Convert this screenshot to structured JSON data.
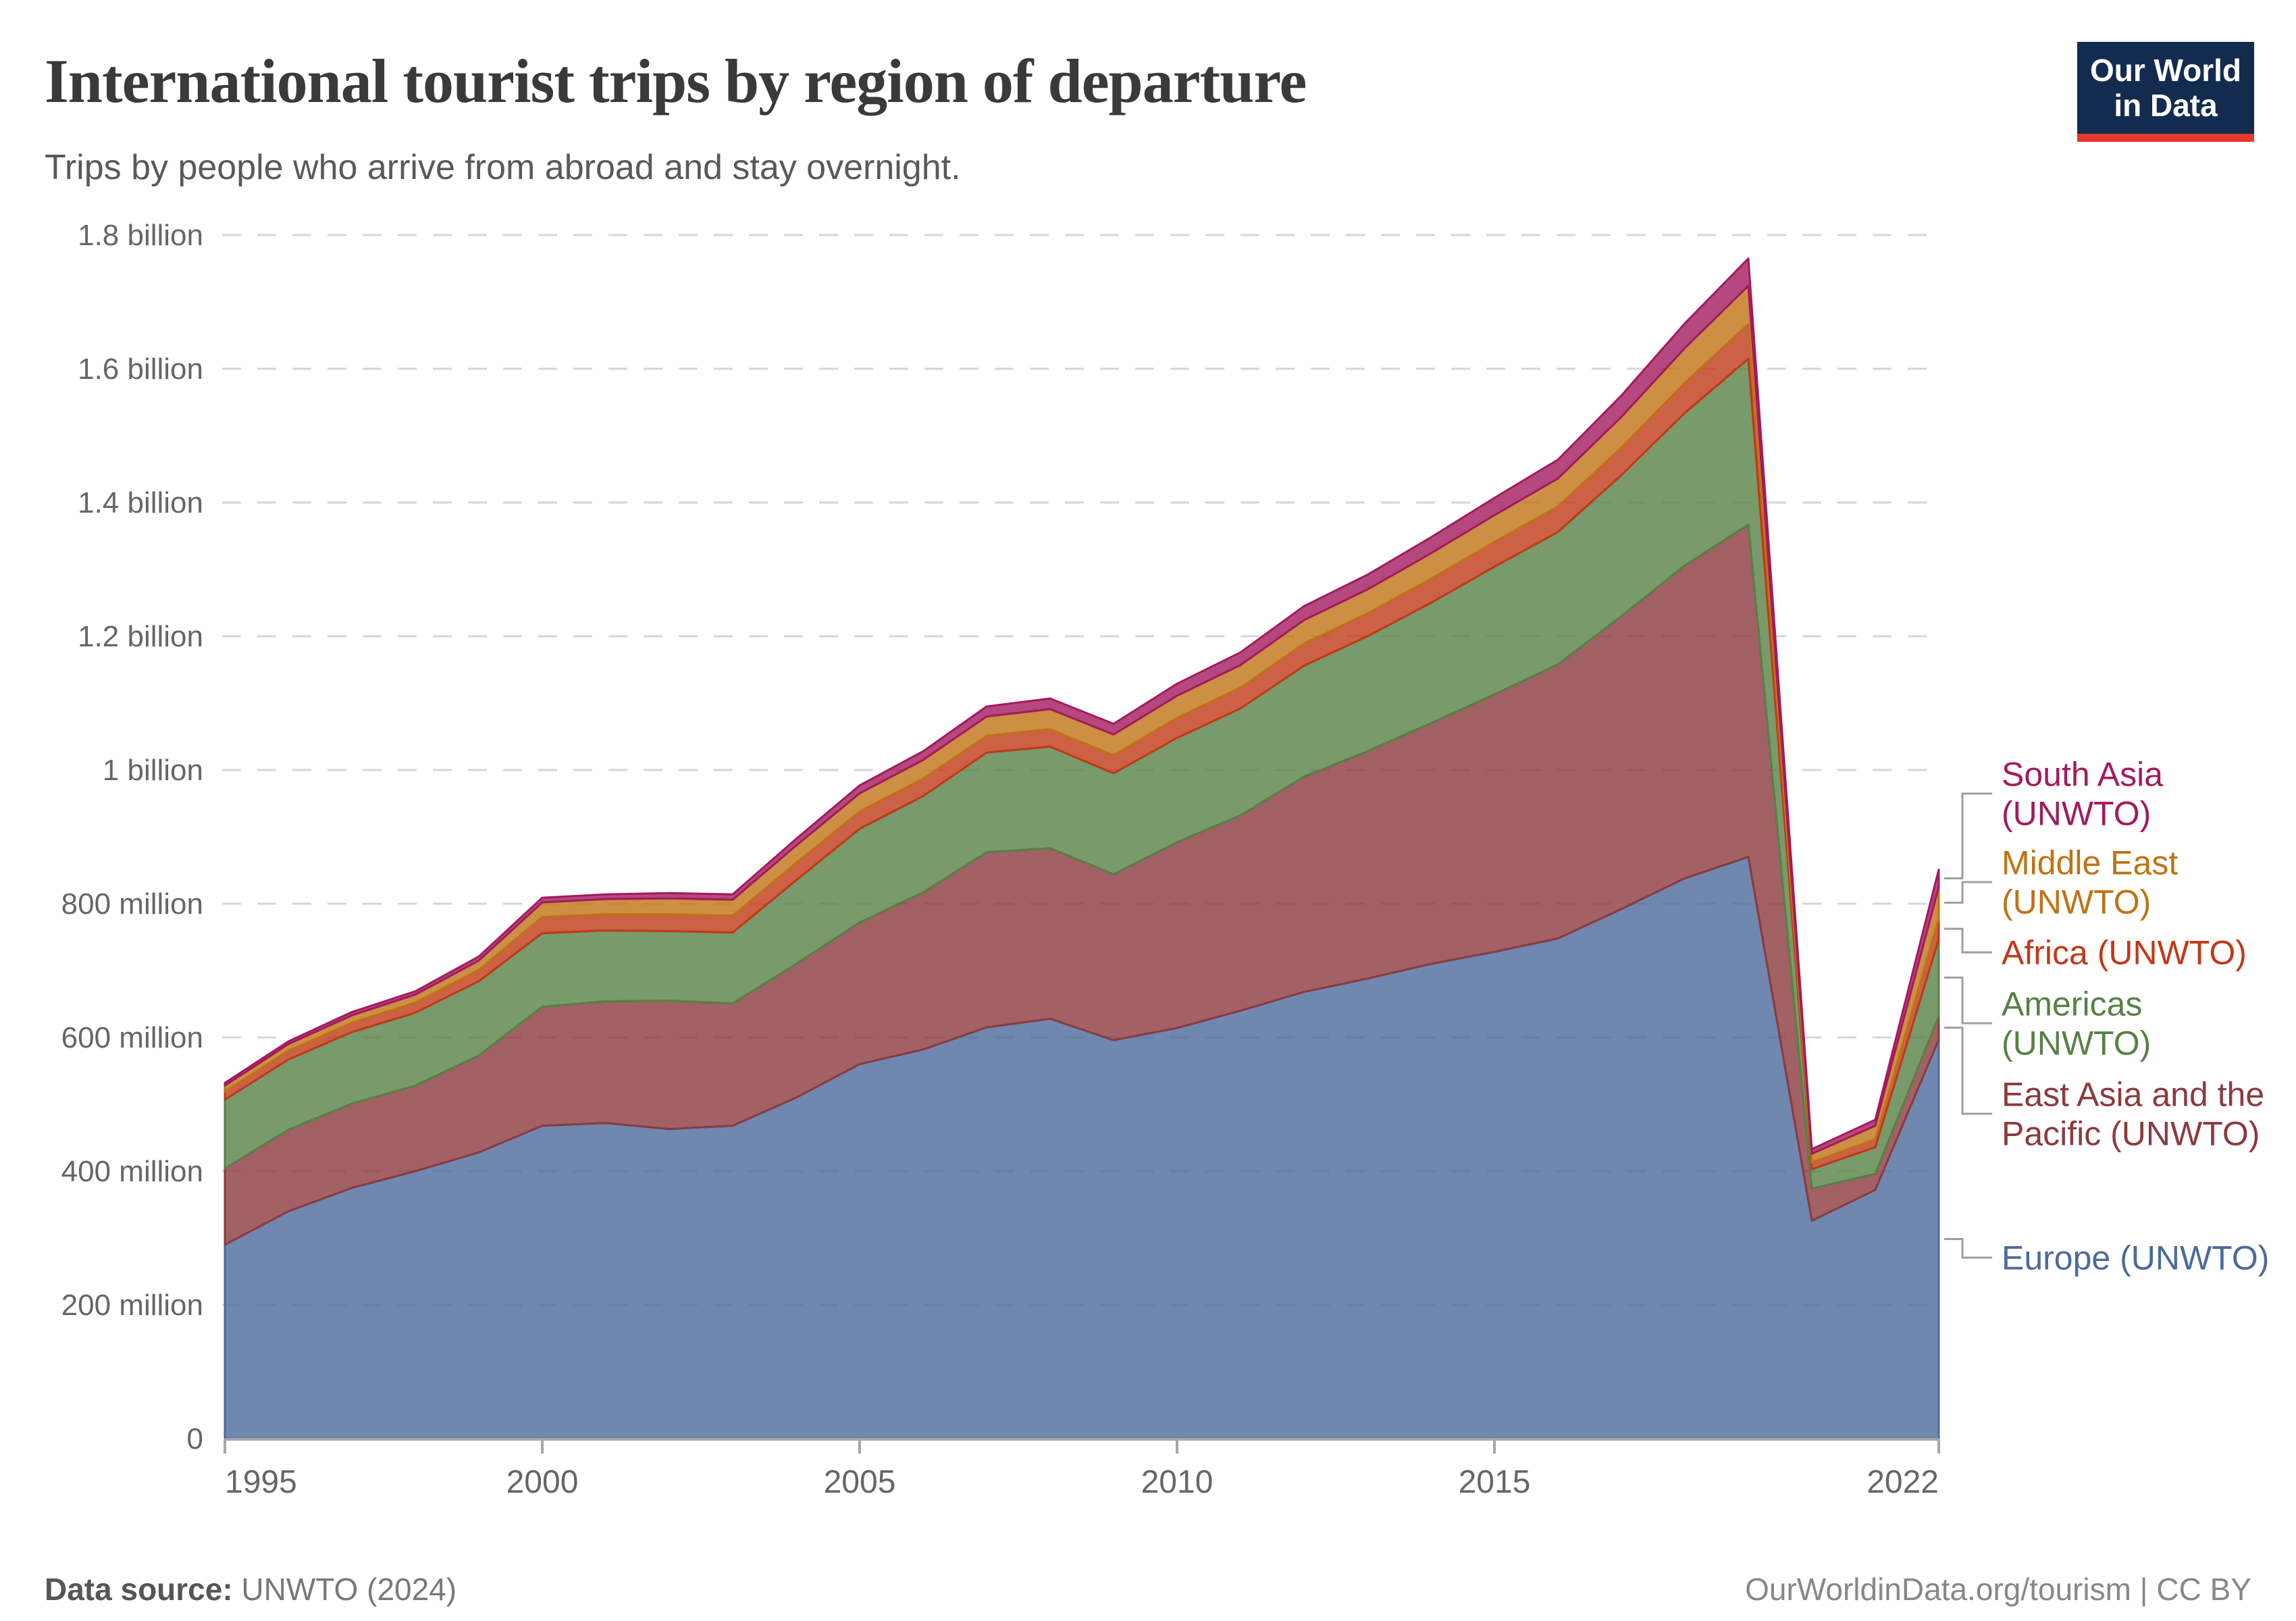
{
  "header": {
    "title": "International tourist trips by region of departure",
    "subtitle": "Trips by people who arrive from abroad and stay overnight.",
    "logo_line1": "Our World",
    "logo_line2": "in Data"
  },
  "footer": {
    "source_label": "Data source:",
    "source_value": " UNWTO (2024)",
    "credit": "OurWorldinData.org/tourism | CC BY"
  },
  "colors": {
    "background": "#ffffff",
    "grid": "#d6d6d6",
    "axis": "#a5a5a5",
    "tick_label": "#666666",
    "leader_line": "#9e9e9e",
    "logo_bg": "#132B4F",
    "logo_red": "#E23A2C"
  },
  "chart_data": {
    "type": "area",
    "stacked": true,
    "title": "International tourist trips by region of departure",
    "xlabel": "",
    "ylabel": "",
    "unit": "trips per year",
    "grid": "dashed-horizontal",
    "legend_position": "right",
    "xlim": [
      1995,
      2022
    ],
    "ylim": [
      0,
      1800
    ],
    "ylim_unit": "millions",
    "x": [
      1995,
      1996,
      1997,
      1998,
      1999,
      2000,
      2001,
      2002,
      2003,
      2004,
      2005,
      2006,
      2007,
      2008,
      2009,
      2010,
      2011,
      2012,
      2013,
      2014,
      2015,
      2016,
      2017,
      2018,
      2019,
      2020,
      2021,
      2022
    ],
    "x_ticks": [
      1995,
      2000,
      2005,
      2010,
      2015,
      2022
    ],
    "y_ticks": [
      {
        "value": 0,
        "label": "0"
      },
      {
        "value": 200,
        "label": "200 million"
      },
      {
        "value": 400,
        "label": "400 million"
      },
      {
        "value": 600,
        "label": "600 million"
      },
      {
        "value": 800,
        "label": "800 million"
      },
      {
        "value": 1000,
        "label": "1 billion"
      },
      {
        "value": 1200,
        "label": "1.2 billion"
      },
      {
        "value": 1400,
        "label": "1.4 billion"
      },
      {
        "value": 1600,
        "label": "1.6 billion"
      },
      {
        "value": 1800,
        "label": "1.8 billion"
      }
    ],
    "series": [
      {
        "name": "Europe (UNWTO)",
        "slug": "europe",
        "color": "#4C6A9C",
        "label_lines": [
          "Europe (UNWTO)"
        ],
        "values": [
          290,
          340,
          375,
          400,
          428,
          468,
          472,
          463,
          468,
          510,
          560,
          582,
          615,
          628,
          596,
          614,
          640,
          668,
          688,
          710,
          728,
          748,
          792,
          838,
          870,
          326,
          372,
          597
        ]
      },
      {
        "name": "East Asia and the Pacific (UNWTO)",
        "slug": "east-asia-and-the-pacific",
        "color": "#8B3A3E",
        "label_lines": [
          "East Asia and the",
          "Pacific (UNWTO)"
        ],
        "values": [
          114,
          122,
          126,
          128,
          145,
          178,
          182,
          192,
          183,
          200,
          212,
          235,
          262,
          255,
          248,
          278,
          292,
          322,
          340,
          360,
          385,
          410,
          438,
          468,
          497,
          48,
          24,
          35
        ]
      },
      {
        "name": "Americas (UNWTO)",
        "slug": "americas",
        "color": "#578145",
        "label_lines": [
          "Americas",
          "(UNWTO)"
        ],
        "values": [
          103,
          105,
          107,
          109,
          111,
          110,
          106,
          104,
          106,
          125,
          140,
          144,
          149,
          152,
          151,
          156,
          160,
          166,
          172,
          180,
          191,
          198,
          211,
          228,
          248,
          29,
          40,
          115
        ]
      },
      {
        "name": "Africa (UNWTO)",
        "slug": "africa",
        "color": "#C03917",
        "label_lines": [
          "Africa (UNWTO)"
        ],
        "values": [
          12,
          13,
          14,
          15,
          17,
          24,
          24,
          25,
          25,
          26,
          26,
          26,
          25,
          26,
          27,
          30,
          31,
          33,
          34,
          36,
          37,
          38,
          41,
          45,
          52,
          10,
          12,
          31
        ]
      },
      {
        "name": "Middle East (UNWTO)",
        "slug": "middle-east",
        "color": "#BF7314",
        "label_lines": [
          "Middle East",
          "(UNWTO)"
        ],
        "values": [
          9,
          10,
          11,
          12,
          14,
          22,
          23,
          24,
          24,
          26,
          27,
          28,
          29,
          30,
          31,
          33,
          34,
          35,
          36,
          38,
          40,
          42,
          46,
          52,
          57,
          13,
          20,
          47
        ]
      },
      {
        "name": "South Asia (UNWTO)",
        "slug": "south-asia",
        "color": "#A31A5E",
        "label_lines": [
          "South Asia",
          "(UNWTO)"
        ],
        "values": [
          4,
          4,
          5,
          5,
          6,
          7,
          7,
          8,
          8,
          10,
          12,
          13,
          15,
          16,
          16,
          18,
          19,
          21,
          22,
          24,
          26,
          28,
          32,
          37,
          41,
          7,
          9,
          26
        ]
      }
    ]
  }
}
